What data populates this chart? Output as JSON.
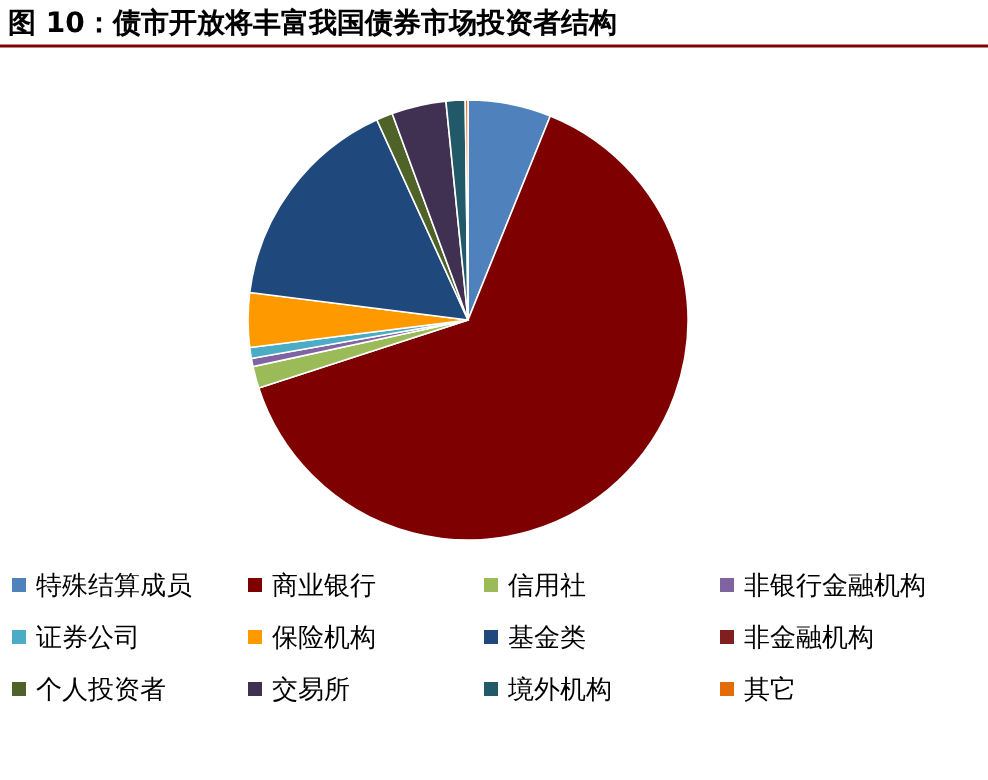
{
  "chart_data": {
    "type": "pie",
    "title": "图 10：债市开放将丰富我国债券市场投资者结构",
    "categories": [
      "特殊结算成员",
      "商业银行",
      "信用社",
      "非银行金融机构",
      "证券公司",
      "保险机构",
      "基金类",
      "非金融机构",
      "个人投资者",
      "交易所",
      "境外机构",
      "其它"
    ],
    "values": [
      6.1,
      63.9,
      1.6,
      0.6,
      0.8,
      4.0,
      16.2,
      null,
      1.2,
      4.0,
      1.4,
      0.2
    ],
    "colors": [
      "#4f81bd",
      "#7f0000",
      "#9bbb59",
      "#8064a2",
      "#4bacc6",
      "#ff9900",
      "#1f497d",
      "#7f1f1f",
      "#4f6228",
      "#403152",
      "#215968",
      "#e36c09"
    ],
    "legend": "bottom"
  }
}
